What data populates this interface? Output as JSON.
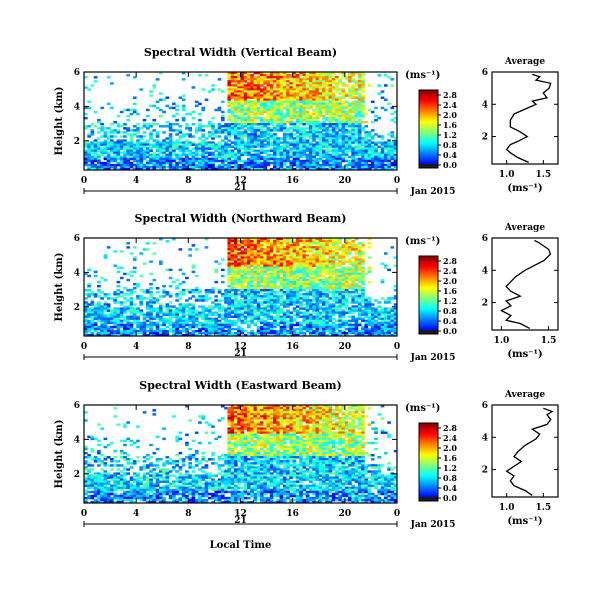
{
  "figure": {
    "date_label": "Jan 2015",
    "day_label": "21",
    "xlabel": "Local Time",
    "ylabel": "Height (km)",
    "avg_title": "Average",
    "unit_label": "(ms⁻¹)"
  },
  "chart_data": [
    {
      "type": "heatmap",
      "name": "vertical",
      "title": "Spectral Width (Vertical Beam)",
      "xlabel": "Local Time",
      "ylabel": "Height (km)",
      "x_ticks": [
        "0",
        "4",
        "8",
        "12",
        "16",
        "20",
        "0"
      ],
      "y_ticks": [
        "2",
        "4",
        "6"
      ],
      "xlim": [
        0,
        24
      ],
      "ylim": [
        0.3,
        6.0
      ],
      "colorbar": {
        "label": "(ms⁻¹)",
        "ticks": [
          "0.0",
          "0.4",
          "0.8",
          "1.2",
          "1.6",
          "2.0",
          "2.4",
          "2.8"
        ]
      },
      "average": {
        "title": "Average",
        "xlabel": "(ms⁻¹)",
        "x_ticks": [
          "1.0",
          "1.5"
        ],
        "xlim": [
          0.8,
          1.7
        ],
        "y_ticks": [
          "2",
          "4",
          "6"
        ],
        "profile": [
          [
            1.3,
            0.4
          ],
          [
            1.15,
            0.7
          ],
          [
            1.05,
            1.0
          ],
          [
            1.0,
            1.2
          ],
          [
            1.05,
            1.5
          ],
          [
            1.15,
            1.7
          ],
          [
            1.28,
            2.0
          ],
          [
            1.18,
            2.3
          ],
          [
            1.05,
            2.6
          ],
          [
            1.05,
            3.0
          ],
          [
            1.1,
            3.4
          ],
          [
            1.25,
            3.7
          ],
          [
            1.4,
            4.0
          ],
          [
            1.35,
            4.2
          ],
          [
            1.55,
            4.4
          ],
          [
            1.5,
            4.7
          ],
          [
            1.58,
            5.0
          ],
          [
            1.6,
            5.3
          ],
          [
            1.4,
            5.5
          ],
          [
            1.45,
            5.7
          ],
          [
            1.35,
            5.85
          ]
        ]
      }
    },
    {
      "type": "heatmap",
      "name": "northward",
      "title": "Spectral Width (Northward Beam)",
      "xlabel": "Local Time",
      "ylabel": "Height (km)",
      "x_ticks": [
        "0",
        "4",
        "8",
        "12",
        "16",
        "20",
        "0"
      ],
      "y_ticks": [
        "2",
        "4",
        "6"
      ],
      "xlim": [
        0,
        24
      ],
      "ylim": [
        0.3,
        6.0
      ],
      "colorbar": {
        "label": "(ms⁻¹)",
        "ticks": [
          "0.0",
          "0.4",
          "0.8",
          "1.2",
          "1.6",
          "2.0",
          "2.4",
          "2.8"
        ]
      },
      "average": {
        "title": "Average",
        "xlabel": "(ms⁻¹)",
        "x_ticks": [
          "1.0",
          "1.5"
        ],
        "xlim": [
          0.9,
          1.6
        ],
        "y_ticks": [
          "2",
          "4",
          "6"
        ],
        "profile": [
          [
            1.3,
            0.4
          ],
          [
            1.2,
            0.7
          ],
          [
            1.05,
            0.9
          ],
          [
            1.1,
            1.2
          ],
          [
            1.0,
            1.5
          ],
          [
            1.1,
            1.8
          ],
          [
            1.05,
            2.1
          ],
          [
            1.2,
            2.4
          ],
          [
            1.1,
            2.7
          ],
          [
            1.05,
            3.0
          ],
          [
            1.1,
            3.3
          ],
          [
            1.15,
            3.6
          ],
          [
            1.25,
            4.0
          ],
          [
            1.35,
            4.3
          ],
          [
            1.45,
            4.6
          ],
          [
            1.52,
            5.0
          ],
          [
            1.5,
            5.3
          ],
          [
            1.45,
            5.5
          ],
          [
            1.4,
            5.7
          ],
          [
            1.35,
            5.85
          ]
        ]
      }
    },
    {
      "type": "heatmap",
      "name": "eastward",
      "title": "Spectral Width (Eastward Beam)",
      "xlabel": "Local Time",
      "ylabel": "Height (km)",
      "x_ticks": [
        "0",
        "4",
        "8",
        "12",
        "16",
        "20",
        "0"
      ],
      "y_ticks": [
        "2",
        "4",
        "6"
      ],
      "xlim": [
        0,
        24
      ],
      "ylim": [
        0.3,
        6.0
      ],
      "colorbar": {
        "label": "(ms⁻¹)",
        "ticks": [
          "0.0",
          "0.4",
          "0.8",
          "1.2",
          "1.6",
          "2.0",
          "2.4",
          "2.8"
        ]
      },
      "average": {
        "title": "Average",
        "xlabel": "(ms⁻¹)",
        "x_ticks": [
          "1.0",
          "1.5"
        ],
        "xlim": [
          0.8,
          1.7
        ],
        "y_ticks": [
          "2",
          "4",
          "6"
        ],
        "profile": [
          [
            1.35,
            0.4
          ],
          [
            1.25,
            0.7
          ],
          [
            1.1,
            1.0
          ],
          [
            1.05,
            1.3
          ],
          [
            1.1,
            1.6
          ],
          [
            1.0,
            1.9
          ],
          [
            1.1,
            2.2
          ],
          [
            1.2,
            2.5
          ],
          [
            1.1,
            2.8
          ],
          [
            1.15,
            3.1
          ],
          [
            1.25,
            3.5
          ],
          [
            1.4,
            3.9
          ],
          [
            1.45,
            4.2
          ],
          [
            1.35,
            4.5
          ],
          [
            1.55,
            4.8
          ],
          [
            1.6,
            5.1
          ],
          [
            1.55,
            5.4
          ],
          [
            1.62,
            5.6
          ],
          [
            1.5,
            5.8
          ]
        ]
      }
    }
  ]
}
